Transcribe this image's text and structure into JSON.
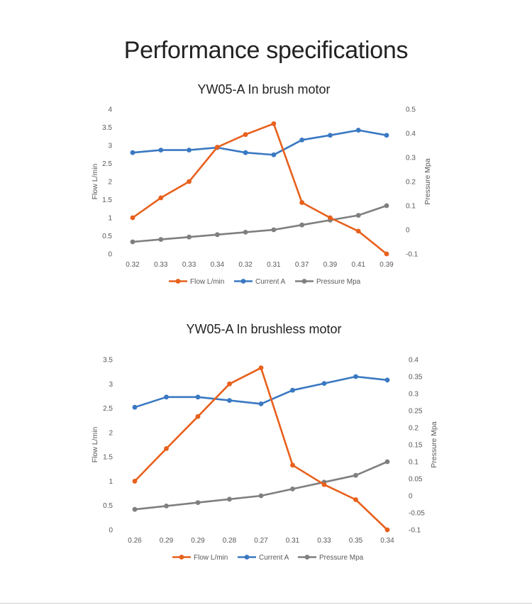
{
  "page": {
    "title": "Performance specifications"
  },
  "colors": {
    "flow": "#e8601c",
    "current": "#3a78c2",
    "pressure": "#7f7f7f",
    "axis_text": "#595959"
  },
  "chart_data": [
    {
      "type": "line",
      "title": "YW05-A In brush motor",
      "categories": [
        "0.32",
        "0.33",
        "0.33",
        "0.34",
        "0.32",
        "0.31",
        "0.37",
        "0.39",
        "0.41",
        "0.39"
      ],
      "ylabel": "Flow  L/min",
      "y2label": "Pressure  Mpa",
      "ylim": [
        0,
        4
      ],
      "yticks": [
        "0",
        "0.5",
        "1",
        "1.5",
        "2",
        "2.5",
        "3",
        "3.5",
        "4"
      ],
      "y2lim": [
        -0.1,
        0.5
      ],
      "y2ticks": [
        "-0.1",
        "0",
        "0.1",
        "0.2",
        "0.3",
        "0.4",
        "0.5"
      ],
      "legend_position": "bottom",
      "series": [
        {
          "name": "Flow L/min",
          "key": "flow",
          "axis": "left",
          "values": [
            1.0,
            1.55,
            2.0,
            2.95,
            3.3,
            3.6,
            1.42,
            1.0,
            0.63,
            0.0
          ]
        },
        {
          "name": "Current A",
          "key": "current",
          "axis": "left",
          "values": [
            2.8,
            2.87,
            2.87,
            2.94,
            2.8,
            2.74,
            3.15,
            3.28,
            3.42,
            3.28
          ]
        },
        {
          "name": "Pressure Mpa",
          "key": "pressure",
          "axis": "right",
          "values": [
            -0.05,
            -0.04,
            -0.03,
            -0.02,
            -0.01,
            0.0,
            0.02,
            0.04,
            0.06,
            0.1
          ]
        }
      ]
    },
    {
      "type": "line",
      "title": "YW05-A In brushless motor",
      "categories": [
        "0.26",
        "0.29",
        "0.29",
        "0.28",
        "0.27",
        "0.31",
        "0.33",
        "0.35",
        "0.34"
      ],
      "ylabel": "Flow  L/min",
      "y2label": "Pressure  Mpa",
      "ylim": [
        0,
        3.5
      ],
      "yticks": [
        "0",
        "0.5",
        "1",
        "1.5",
        "2",
        "2.5",
        "3",
        "3.5"
      ],
      "y2lim": [
        -0.1,
        0.4
      ],
      "y2ticks": [
        "-0.1",
        "-0.05",
        "0",
        "0.05",
        "0.1",
        "0.15",
        "0.2",
        "0.25",
        "0.3",
        "0.35",
        "0.4"
      ],
      "legend_position": "bottom",
      "series": [
        {
          "name": "Flow L/min",
          "key": "flow",
          "axis": "left",
          "values": [
            1.0,
            1.67,
            2.33,
            3.0,
            3.33,
            1.33,
            0.93,
            0.62,
            0.0
          ]
        },
        {
          "name": "Current A",
          "key": "current",
          "axis": "left",
          "values": [
            2.52,
            2.73,
            2.73,
            2.66,
            2.59,
            2.87,
            3.01,
            3.15,
            3.08
          ]
        },
        {
          "name": "Pressure Mpa",
          "key": "pressure",
          "axis": "right",
          "values": [
            -0.04,
            -0.03,
            -0.02,
            -0.01,
            0.0,
            0.02,
            0.04,
            0.06,
            0.1
          ]
        }
      ]
    }
  ]
}
